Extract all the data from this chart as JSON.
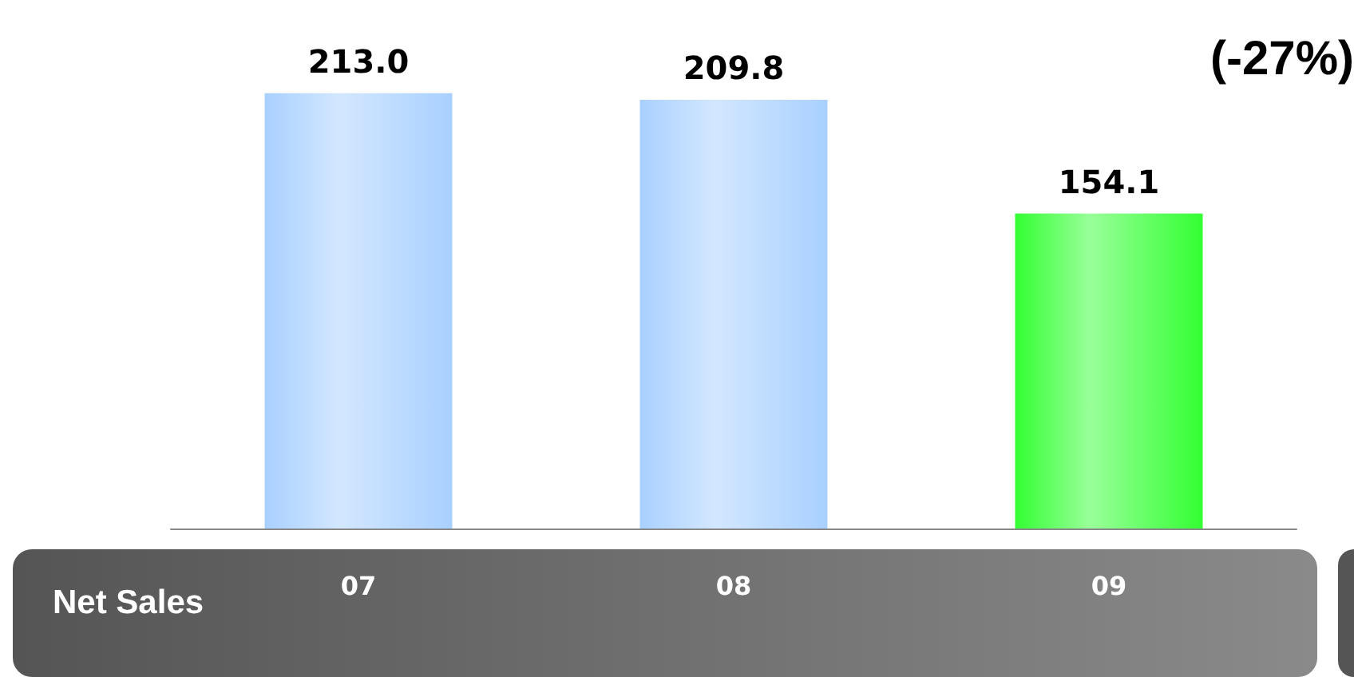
{
  "chart_data": {
    "type": "bar",
    "title": "Net Sales",
    "categories": [
      "07",
      "08",
      "09"
    ],
    "values": [
      213.0,
      209.8,
      154.1
    ],
    "colors": [
      "#a8d0ff",
      "#a8d0ff",
      "#33ff33"
    ],
    "value_labels": [
      "213.0",
      "209.8",
      "154.1"
    ],
    "annotations": [
      "(-27%)"
    ]
  }
}
